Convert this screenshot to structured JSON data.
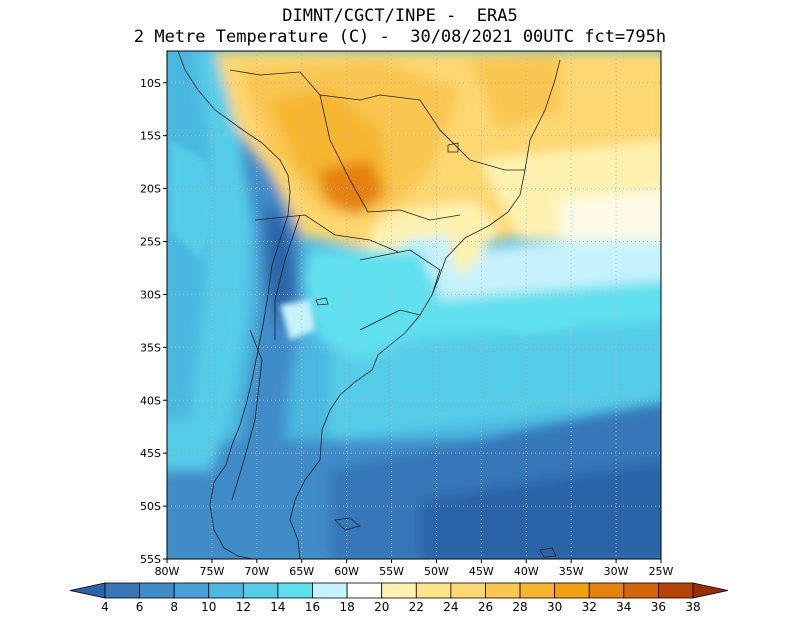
{
  "title": {
    "line1": "DIMNT/CGCT/INPE -  ERA5",
    "line2": "2 Metre Temperature (C) -  30/08/2021 00UTC fct=795h"
  },
  "map": {
    "lon_range": [
      -80,
      -25
    ],
    "lat_range": [
      -55,
      -7
    ],
    "lon_ticks": [
      "80W",
      "75W",
      "70W",
      "65W",
      "60W",
      "55W",
      "50W",
      "45W",
      "40W",
      "35W",
      "30W",
      "25W"
    ],
    "lat_ticks": [
      "10S",
      "15S",
      "20S",
      "25S",
      "30S",
      "35S",
      "40S",
      "45S",
      "50S",
      "55S"
    ],
    "gridlines": true,
    "grid_style": "dotted"
  },
  "colorbar": {
    "levels": [
      "4",
      "6",
      "8",
      "10",
      "12",
      "14",
      "16",
      "18",
      "20",
      "22",
      "24",
      "26",
      "28",
      "30",
      "32",
      "34",
      "36",
      "38"
    ],
    "colors": [
      "#2a63a8",
      "#3577b8",
      "#3f8cc8",
      "#4aa0d8",
      "#4db8e2",
      "#56cde8",
      "#5fe0ef",
      "#c6f2fb",
      "#ffffff",
      "#fff2b0",
      "#ffe58a",
      "#fdd770",
      "#f9c64f",
      "#f5b52e",
      "#f3a113",
      "#e5810d",
      "#d4650a",
      "#b54406",
      "#9a2e03"
    ]
  }
}
